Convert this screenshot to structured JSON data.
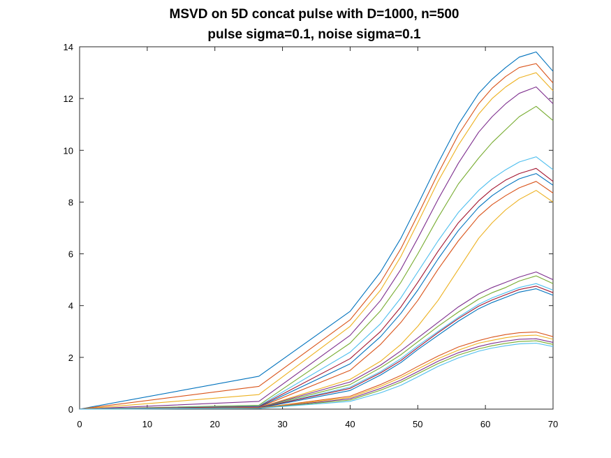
{
  "chart_data": {
    "type": "line",
    "title_lines": [
      "MSVD on 5D concat pulse with D=1000, n=500",
      "pulse sigma=0.1, noise sigma=0.1"
    ],
    "xlabel": "",
    "ylabel": "",
    "xlim": [
      0,
      70
    ],
    "ylim": [
      0,
      14
    ],
    "x_ticks": [
      0,
      10,
      20,
      30,
      40,
      50,
      60,
      70
    ],
    "y_ticks": [
      0,
      2,
      4,
      6,
      8,
      10,
      12,
      14
    ],
    "grid": false,
    "legend": "none",
    "x": [
      0,
      26.5,
      40,
      44.5,
      47.5,
      50,
      53,
      56,
      59,
      61,
      63,
      65,
      67.5,
      70
    ],
    "series": [
      {
        "color": "#0072BD",
        "values": [
          0,
          1.27,
          3.78,
          5.3,
          6.6,
          7.9,
          9.5,
          11.0,
          12.2,
          12.75,
          13.2,
          13.6,
          13.8,
          13.05
        ]
      },
      {
        "color": "#D95319",
        "values": [
          0,
          0.88,
          3.45,
          4.9,
          6.2,
          7.5,
          9.1,
          10.6,
          11.8,
          12.4,
          12.85,
          13.2,
          13.35,
          12.6
        ]
      },
      {
        "color": "#EDB120",
        "values": [
          0,
          0.56,
          3.2,
          4.6,
          5.9,
          7.2,
          8.8,
          10.2,
          11.4,
          12.0,
          12.45,
          12.8,
          13.0,
          12.3
        ]
      },
      {
        "color": "#7E2F8E",
        "values": [
          0,
          0.3,
          2.85,
          4.2,
          5.4,
          6.6,
          8.1,
          9.5,
          10.7,
          11.3,
          11.8,
          12.2,
          12.45,
          11.8
        ]
      },
      {
        "color": "#77AC30",
        "values": [
          0,
          0.15,
          2.55,
          3.8,
          4.9,
          6.0,
          7.4,
          8.7,
          9.7,
          10.3,
          10.8,
          11.3,
          11.7,
          11.15
        ]
      },
      {
        "color": "#4DBEEE",
        "values": [
          0,
          0.12,
          2.2,
          3.3,
          4.3,
          5.3,
          6.5,
          7.6,
          8.45,
          8.9,
          9.25,
          9.55,
          9.75,
          9.25
        ]
      },
      {
        "color": "#A2142F",
        "values": [
          0,
          0.1,
          1.95,
          3.0,
          3.95,
          4.9,
          6.1,
          7.2,
          8.05,
          8.5,
          8.85,
          9.1,
          9.3,
          8.8
        ]
      },
      {
        "color": "#0072BD",
        "values": [
          0,
          0.08,
          1.75,
          2.8,
          3.7,
          4.6,
          5.8,
          6.9,
          7.8,
          8.25,
          8.6,
          8.9,
          9.1,
          8.65
        ]
      },
      {
        "color": "#D95319",
        "values": [
          0,
          0.07,
          1.5,
          2.5,
          3.35,
          4.2,
          5.4,
          6.5,
          7.45,
          7.9,
          8.25,
          8.55,
          8.8,
          8.35
        ]
      },
      {
        "color": "#EDB120",
        "values": [
          0,
          0.06,
          1.15,
          1.85,
          2.5,
          3.2,
          4.2,
          5.4,
          6.6,
          7.2,
          7.7,
          8.1,
          8.45,
          8.0
        ]
      },
      {
        "color": "#7E2F8E",
        "values": [
          0,
          0.06,
          1.05,
          1.7,
          2.25,
          2.75,
          3.35,
          3.95,
          4.45,
          4.7,
          4.9,
          5.1,
          5.3,
          5.0
        ]
      },
      {
        "color": "#77AC30",
        "values": [
          0,
          0.05,
          0.95,
          1.6,
          2.1,
          2.6,
          3.2,
          3.75,
          4.25,
          4.5,
          4.7,
          4.95,
          5.15,
          4.85
        ]
      },
      {
        "color": "#4DBEEE",
        "values": [
          0,
          0.05,
          0.85,
          1.45,
          1.95,
          2.45,
          3.0,
          3.55,
          4.05,
          4.3,
          4.5,
          4.7,
          4.85,
          4.6
        ]
      },
      {
        "color": "#A2142F",
        "values": [
          0,
          0.05,
          0.8,
          1.4,
          1.88,
          2.38,
          2.95,
          3.5,
          3.98,
          4.22,
          4.42,
          4.62,
          4.75,
          4.5
        ]
      },
      {
        "color": "#0072BD",
        "values": [
          0,
          0.04,
          0.72,
          1.32,
          1.8,
          2.3,
          2.85,
          3.4,
          3.88,
          4.12,
          4.32,
          4.52,
          4.65,
          4.4
        ]
      },
      {
        "color": "#D95319",
        "values": [
          0,
          0.04,
          0.5,
          0.95,
          1.3,
          1.65,
          2.05,
          2.4,
          2.65,
          2.78,
          2.88,
          2.95,
          2.98,
          2.8
        ]
      },
      {
        "color": "#EDB120",
        "values": [
          0,
          0.04,
          0.45,
          0.88,
          1.22,
          1.55,
          1.95,
          2.28,
          2.55,
          2.66,
          2.76,
          2.83,
          2.86,
          2.7
        ]
      },
      {
        "color": "#7E2F8E",
        "values": [
          0,
          0.03,
          0.4,
          0.8,
          1.12,
          1.45,
          1.85,
          2.18,
          2.42,
          2.54,
          2.63,
          2.7,
          2.72,
          2.58
        ]
      },
      {
        "color": "#77AC30",
        "values": [
          0,
          0.03,
          0.35,
          0.73,
          1.04,
          1.37,
          1.76,
          2.09,
          2.33,
          2.45,
          2.54,
          2.61,
          2.64,
          2.5
        ]
      },
      {
        "color": "#4DBEEE",
        "values": [
          0,
          0.03,
          0.3,
          0.63,
          0.92,
          1.25,
          1.65,
          1.98,
          2.24,
          2.36,
          2.45,
          2.52,
          2.55,
          2.42
        ]
      }
    ]
  }
}
